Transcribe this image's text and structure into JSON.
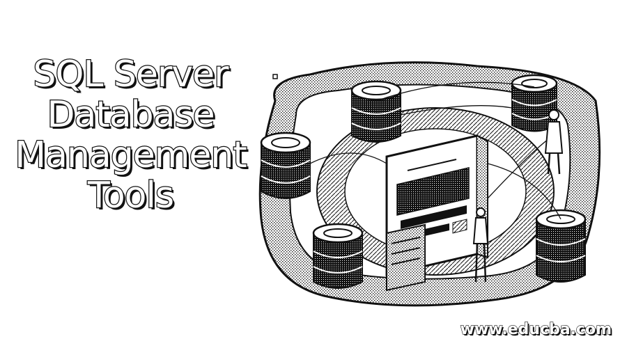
{
  "title": {
    "lines": [
      "SQL Server",
      "Database",
      "Management",
      "Tools"
    ]
  },
  "watermark": "www.educba.com",
  "illustration": {
    "subject": "server-room-icon",
    "ink_color": "#111111",
    "paper_color": "#ffffff"
  }
}
